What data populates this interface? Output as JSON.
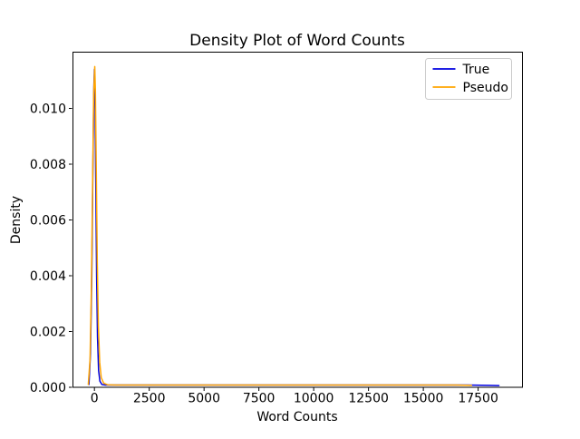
{
  "figure": {
    "background": "#ffffff",
    "axes_edge_color": "#000000",
    "legend_border_color": "#cccccc"
  },
  "chart_data": {
    "type": "line",
    "title": "Density Plot of Word Counts",
    "xlabel": "Word Counts",
    "ylabel": "Density",
    "xlim": [
      -1000,
      19500
    ],
    "ylim": [
      0,
      0.012
    ],
    "xticks": [
      0,
      2500,
      5000,
      7500,
      10000,
      12500,
      15000,
      17500
    ],
    "xtick_labels": [
      "0",
      "2500",
      "5000",
      "7500",
      "10000",
      "12500",
      "15000",
      "17500"
    ],
    "yticks": [
      0,
      0.002,
      0.004,
      0.006,
      0.008,
      0.01
    ],
    "ytick_labels": [
      "0.000",
      "0.002",
      "0.004",
      "0.006",
      "0.008",
      "0.010"
    ],
    "grid": false,
    "legend": {
      "position": "upper right",
      "entries": [
        "True",
        "Pseudo"
      ]
    },
    "series": [
      {
        "name": "True",
        "color": "#0000e0",
        "points": [
          [
            -250,
            0.0001
          ],
          [
            -180,
            0.0012
          ],
          [
            -120,
            0.004
          ],
          [
            -70,
            0.0078
          ],
          [
            -25,
            0.0108
          ],
          [
            0,
            0.0114
          ],
          [
            25,
            0.0104
          ],
          [
            60,
            0.0075
          ],
          [
            100,
            0.004
          ],
          [
            140,
            0.0018
          ],
          [
            190,
            0.0006
          ],
          [
            250,
            0.00022
          ],
          [
            340,
            0.0001
          ],
          [
            500,
            8e-05
          ],
          [
            1000,
            8e-05
          ],
          [
            2500,
            8e-05
          ],
          [
            5000,
            8e-05
          ],
          [
            7500,
            8e-05
          ],
          [
            10000,
            8e-05
          ],
          [
            12500,
            8e-05
          ],
          [
            15000,
            8e-05
          ],
          [
            17000,
            8e-05
          ],
          [
            18000,
            7e-05
          ],
          [
            18450,
            6e-05
          ]
        ]
      },
      {
        "name": "Pseudo",
        "color": "#ffa500",
        "points": [
          [
            -280,
            0.0001
          ],
          [
            -200,
            0.001
          ],
          [
            -140,
            0.0035
          ],
          [
            -85,
            0.0072
          ],
          [
            -35,
            0.0105
          ],
          [
            15,
            0.0115
          ],
          [
            45,
            0.0106
          ],
          [
            85,
            0.0078
          ],
          [
            130,
            0.0045
          ],
          [
            180,
            0.0022
          ],
          [
            240,
            0.0009
          ],
          [
            310,
            0.00035
          ],
          [
            420,
            0.00015
          ],
          [
            600,
            9e-05
          ],
          [
            1000,
            8e-05
          ],
          [
            2500,
            8e-05
          ],
          [
            5000,
            8e-05
          ],
          [
            7500,
            8e-05
          ],
          [
            10000,
            8e-05
          ],
          [
            12500,
            8e-05
          ],
          [
            15000,
            8e-05
          ],
          [
            16500,
            8e-05
          ],
          [
            17200,
            7e-05
          ]
        ]
      }
    ]
  }
}
